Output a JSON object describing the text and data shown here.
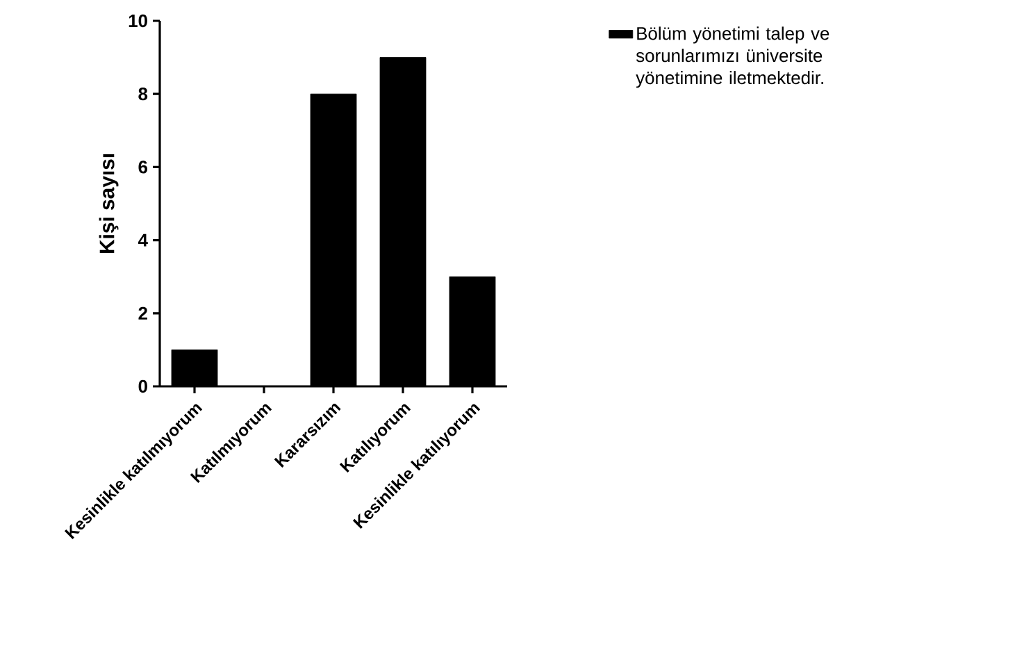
{
  "chart_data": {
    "type": "bar",
    "ylabel": "Kişi sayısı",
    "categories": [
      "Kesinlikle katılmıyorum",
      "Katılmıyorum",
      "Kararsızım",
      "Katılıyorum",
      "Kesinlikle katılıyorum"
    ],
    "series": [
      {
        "name": "Bölüm yönetimi talep ve sorunlarımızı üniversite yönetimine iletmektedir.",
        "color": "#000000",
        "values": [
          1,
          0,
          8,
          9,
          3
        ]
      }
    ],
    "ylim": [
      0,
      10
    ],
    "yticks": [
      0,
      2,
      4,
      6,
      8,
      10
    ],
    "grid": false,
    "legend": "right"
  }
}
